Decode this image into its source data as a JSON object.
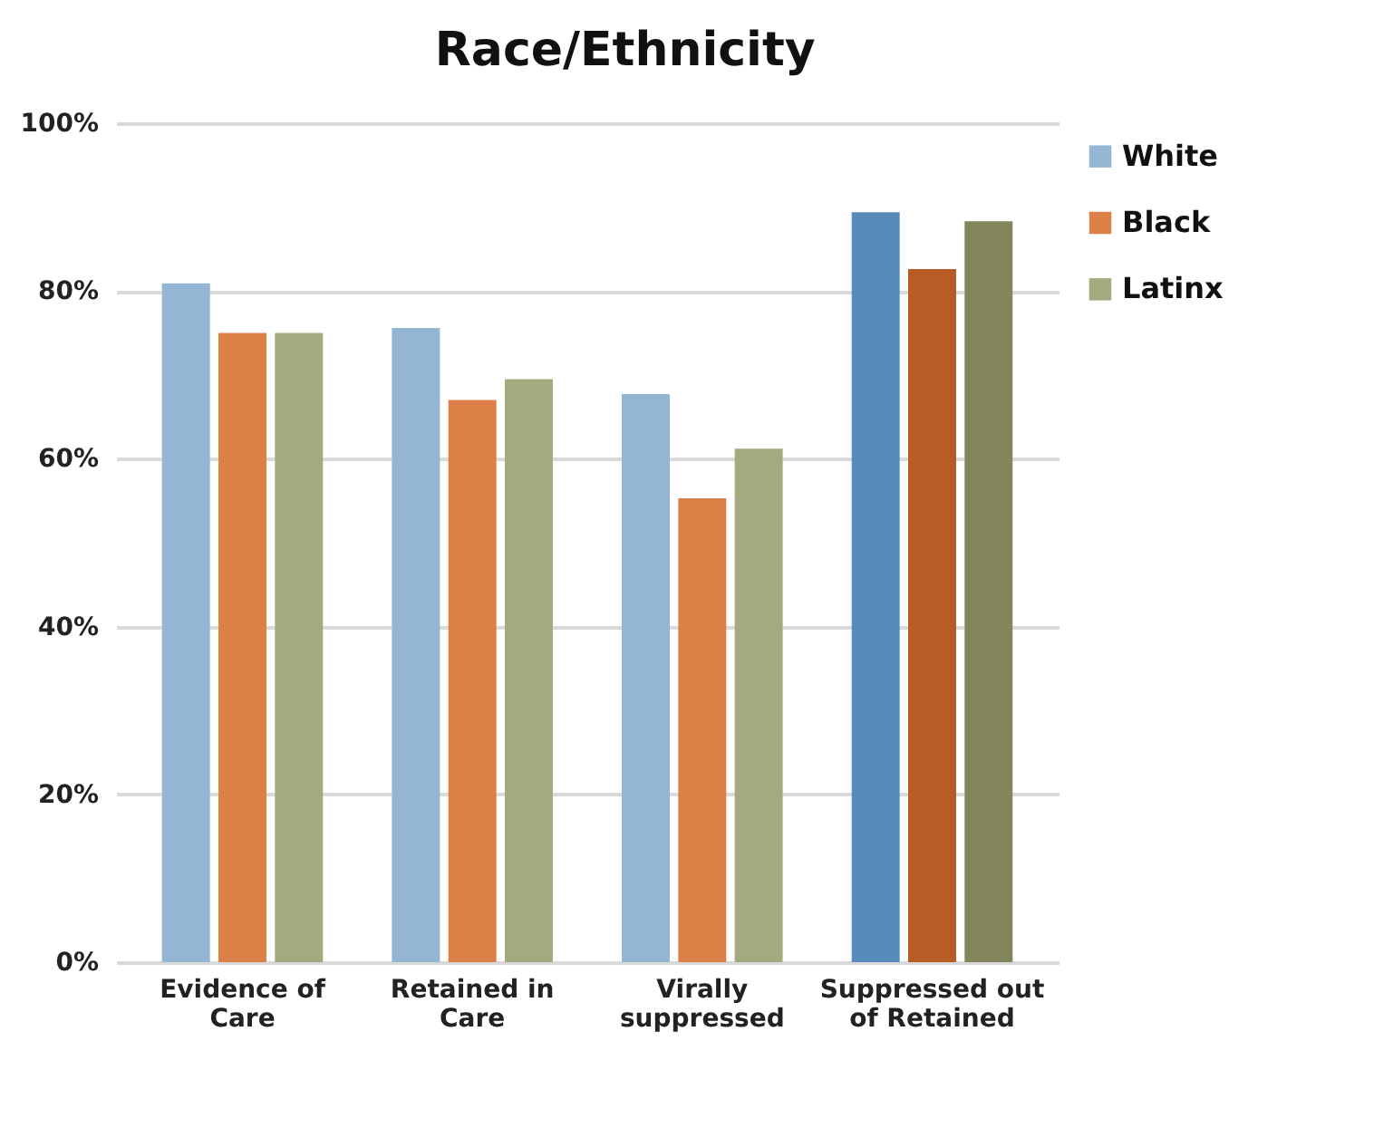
{
  "chart_data": {
    "type": "bar",
    "title": "Race/Ethnicity",
    "categories": [
      "Evidence of Care",
      "Retained in Care",
      "Virally suppressed",
      "Suppressed out of Retained"
    ],
    "series": [
      {
        "name": "White",
        "color": "#95b5d4",
        "colors": [
          "#95b5d4",
          "#95b5d4",
          "#95b5d4",
          "#588bbb"
        ],
        "values": [
          80.9,
          75.6,
          67.7,
          89.4
        ]
      },
      {
        "name": "Black",
        "color": "#dd8048",
        "colors": [
          "#dd8048",
          "#dd8048",
          "#dd8048",
          "#b95b25"
        ],
        "values": [
          75.0,
          67.0,
          55.3,
          82.6
        ]
      },
      {
        "name": "Latinx",
        "color": "#a5aa7e",
        "colors": [
          "#a5aa7e",
          "#a5aa7e",
          "#a5aa7e",
          "#82865a"
        ],
        "values": [
          75.0,
          69.5,
          61.2,
          88.3
        ]
      }
    ],
    "ylim": [
      0,
      100
    ],
    "yticks": [
      {
        "value": 0,
        "label": "0%"
      },
      {
        "value": 20,
        "label": "20%"
      },
      {
        "value": 40,
        "label": "40%"
      },
      {
        "value": 60,
        "label": "60%"
      },
      {
        "value": 80,
        "label": "80%"
      },
      {
        "value": 100,
        "label": "100%"
      }
    ],
    "grid": "y",
    "legend": "right"
  }
}
